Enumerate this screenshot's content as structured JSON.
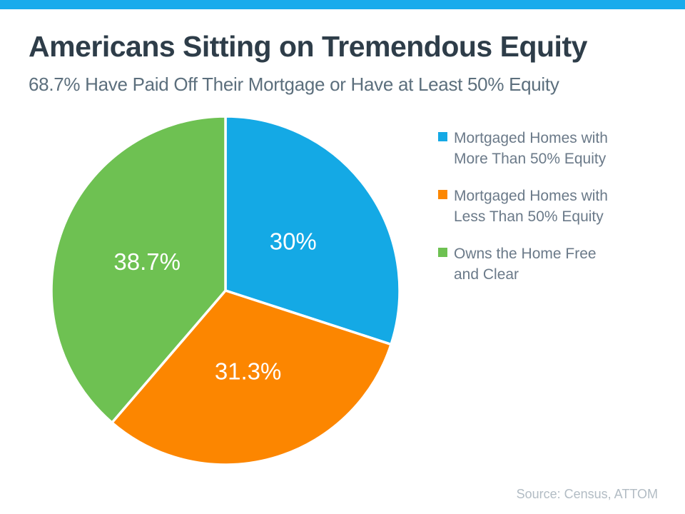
{
  "page": {
    "title": "Americans Sitting on Tremendous Equity",
    "subtitle": "68.7% Have Paid Off Their Mortgage or Have at Least 50% Equity",
    "source": "Source: Census, ATTOM"
  },
  "colors": {
    "accent_bar": "#18ABEC",
    "blue": "#14A9E5",
    "orange": "#FC8600",
    "green": "#6EC152",
    "title_text": "#2E3D49",
    "subtitle_text": "#5C6F7D",
    "legend_text": "#6B7A89",
    "source_text": "#B2BCC4",
    "slice_divider": "#FFFFFF"
  },
  "chart_data": {
    "type": "pie",
    "title": "Americans Sitting on Tremendous Equity",
    "subtitle": "68.7% Have Paid Off Their Mortgage or Have at Least 50% Equity",
    "start_angle_deg": -90,
    "direction": "clockwise",
    "legend_position": "right",
    "slices": [
      {
        "name": "Mortgaged Homes with More Than 50% Equity",
        "value": 30,
        "label": "30%",
        "color": "#14A9E5"
      },
      {
        "name": "Mortgaged Homes with Less Than 50% Equity",
        "value": 31.3,
        "label": "31.3%",
        "color": "#FC8600"
      },
      {
        "name": "Owns the Home Free and Clear",
        "value": 38.7,
        "label": "38.7%",
        "color": "#6EC152"
      }
    ]
  },
  "legend": {
    "items": [
      {
        "lines": [
          "Mortgaged Homes with",
          "More Than 50% Equity"
        ],
        "color": "#14A9E5"
      },
      {
        "lines": [
          "Mortgaged Homes with",
          "Less Than 50% Equity"
        ],
        "color": "#FC8600"
      },
      {
        "lines": [
          "Owns the Home Free",
          "and Clear"
        ],
        "color": "#6EC152"
      }
    ]
  }
}
